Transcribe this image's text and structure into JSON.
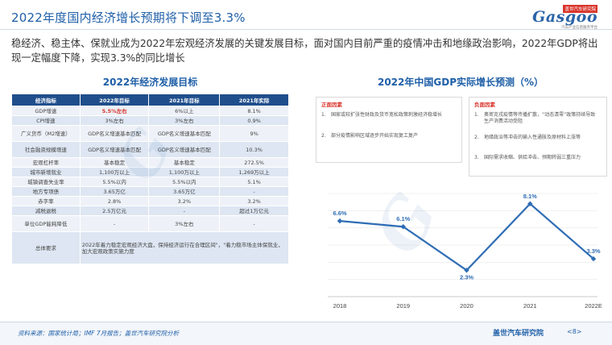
{
  "title": "2022年度国内经济增长预期将下调至3.3%",
  "logo": {
    "brand": "Gasgoo",
    "tag": "盖世汽车研究院",
    "sub": "汽车产业信息服务平台"
  },
  "intro": "稳经济、稳主体、保就业成为2022年宏观经济发展的关键发展目标，面对国内目前严重的疫情冲击和地缘政治影响，2022年GDP将出现一定幅度下降，实现3.3%的同比增长",
  "table": {
    "title": "2022年经济发展目标",
    "headers": [
      "经济指标",
      "2022年目标",
      "2021年目标",
      "2021年实际"
    ],
    "rows": [
      [
        "GDP增速",
        "5.5%左右",
        "6%以上",
        "8.1%"
      ],
      [
        "CPI增速",
        "3%左右",
        "3%左右",
        "0.9%"
      ],
      [
        "广义货币（M2增速）",
        "GDP名义增速基本匹配",
        "GDP名义增速基本匹配",
        "9%"
      ],
      [
        "社会融资规模增速",
        "GDP名义增速基本匹配",
        "GDP名义增速基本匹配",
        "10.3%"
      ],
      [
        "宏观杠杆率",
        "基本稳定",
        "基本稳定",
        "272.5%"
      ],
      [
        "城市新增就业",
        "1,100万以上",
        "1,100万以上",
        "1,269万以上"
      ],
      [
        "城镇调查失业率",
        "5.5%以内",
        "5.5%以内",
        "5.1%"
      ],
      [
        "地方专项债",
        "3.65万亿",
        "3.65万亿",
        "-"
      ],
      [
        "赤字率",
        "2.8%",
        "3.2%",
        "3.2%"
      ],
      [
        "减税退税",
        "2.5万亿元",
        "-",
        "超过1万亿元"
      ],
      [
        "单位GDP能耗降低",
        "-",
        "3%左右",
        "-"
      ]
    ],
    "summary_label": "总体要求",
    "summary_text": "2022年着力稳定宏观经济大盘，保持经济运行在合理区间\"，\"着力稳市场主体保就业，加大宏观政策实施力度"
  },
  "chart_section": {
    "title": "2022年中国GDP实际增长预测（%）",
    "positive": {
      "head": "正面因素",
      "items": [
        {
          "num": "1.",
          "text": "国家或较扩张性财政及货币宽松政策刺激经济稳增长"
        },
        {
          "num": "2.",
          "text": "部分疫情影响区域逐步开始实现复工复产"
        }
      ]
    },
    "negative": {
      "head": "负面因素",
      "items": [
        {
          "num": "1.",
          "text": "奥密克戎疫情等传播扩散，“动态清零”政策持续导致生产消费活动受阻"
        },
        {
          "num": "2.",
          "text": "地缘政治等冲击的输入性通胀及原材料上涨等"
        },
        {
          "num": "3.",
          "text": "国际需求收缩、供给冲击、预期转弱三重压力"
        }
      ]
    }
  },
  "chart_data": {
    "type": "line",
    "categories": [
      "2018",
      "2019",
      "2020",
      "2021",
      "2022E"
    ],
    "values": [
      6.6,
      6.1,
      2.3,
      8.1,
      3.3
    ],
    "value_labels": [
      "6.6%",
      "6.1%",
      "2.3%",
      "8.1%",
      "3.3%"
    ],
    "title": "2022年中国GDP实际增长预测（%）",
    "xlabel": "",
    "ylabel": "",
    "ylim": [
      0,
      9
    ],
    "grid": "horizontal",
    "color": "#2f6db5"
  },
  "footer": {
    "source": "资料来源：国家统计局；IMF 7月报告；盖世汽车研究院分析",
    "brand": "盖世汽车研究院",
    "page": "<8>"
  }
}
